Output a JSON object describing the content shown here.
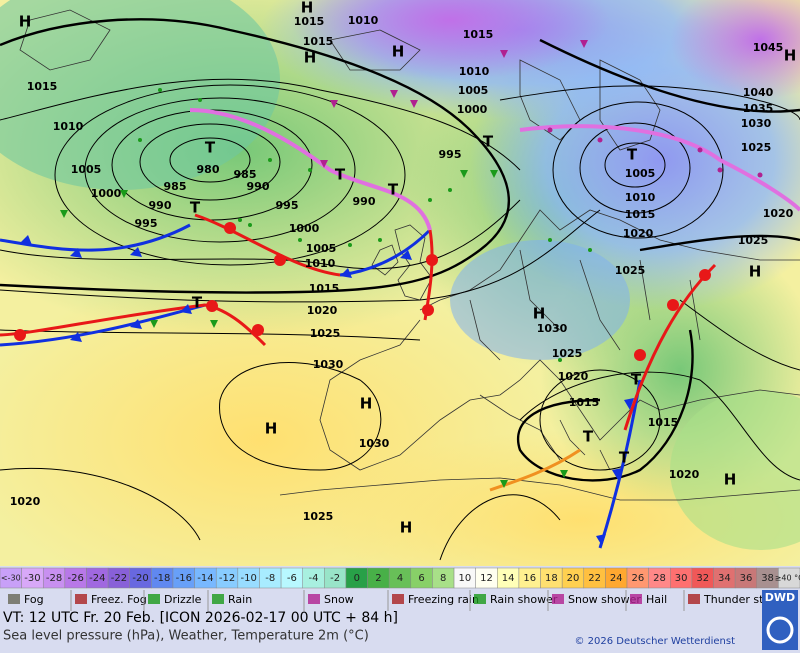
{
  "map": {
    "labels": [
      "1015",
      "1010",
      "1015",
      "1015",
      "1045",
      "1015",
      "1010",
      "1005",
      "1000",
      "1040",
      "1035",
      "1030",
      "1025",
      "1010",
      "995",
      "980",
      "985",
      "1005",
      "985",
      "990",
      "1000",
      "990",
      "990",
      "995",
      "1005",
      "1010",
      "1015",
      "1020",
      "1020",
      "1025",
      "995",
      "1000",
      "1005",
      "1010",
      "1015",
      "1025",
      "1020",
      "1025",
      "1030",
      "1025",
      "1030",
      "1020",
      "1015",
      "1015",
      "1030",
      "1020",
      "1020",
      "1025"
    ],
    "centers": [
      "H",
      "H",
      "H",
      "H",
      "H",
      "T",
      "T",
      "T",
      "T",
      "T",
      "H",
      "H",
      "H",
      "H",
      "H",
      "H",
      "T",
      "T",
      "T",
      "T",
      "T"
    ]
  },
  "scale": {
    "low_label": "<-30",
    "ticks": [
      -30,
      -28,
      -26,
      -24,
      -22,
      -20,
      -18,
      -16,
      -14,
      -12,
      -10,
      -8,
      -6,
      -4,
      -2,
      0,
      2,
      4,
      6,
      8,
      10,
      12,
      14,
      16,
      18,
      20,
      22,
      24,
      26,
      28,
      30,
      32,
      34,
      36,
      38
    ],
    "high_label": "≥40 °C",
    "low_color": "#c8a0f8",
    "high_color": "#d8d8d8",
    "colors": [
      "#d8a8f8",
      "#c890f0",
      "#b878e8",
      "#a068e0",
      "#8860d8",
      "#6868e0",
      "#6088f0",
      "#68a0f8",
      "#78b8ff",
      "#88ccff",
      "#98dcff",
      "#a8ecff",
      "#b8f8ff",
      "#a8f0e0",
      "#98e4c8",
      "#28a048",
      "#48b048",
      "#68c058",
      "#88d068",
      "#a8e088",
      "#f8f8f8",
      "#fffff0",
      "#ffffb8",
      "#fff090",
      "#ffe070",
      "#ffd050",
      "#ffc040",
      "#ffa830",
      "#ff9870",
      "#ff8888",
      "#ff7070",
      "#f05858",
      "#e07070",
      "#c87878",
      "#a89090"
    ]
  },
  "weather_legend": [
    "Fog",
    "Freez. Fog",
    "Drizzle",
    "Rain",
    "Snow",
    "Freezing rain",
    "Rain shower",
    "Snow shower",
    "Hail",
    "Thunder storm"
  ],
  "footer": {
    "valid_time": "VT: 12 UTC Fr.  20 Feb. [ICON 2026-02-17  00 UTC + 84 h]",
    "description": "Sea level pressure (hPa), Weather, Temperature 2m (°C)",
    "copyright": "© 2026 Deutscher Wetterdienst",
    "logo": "DWD"
  }
}
